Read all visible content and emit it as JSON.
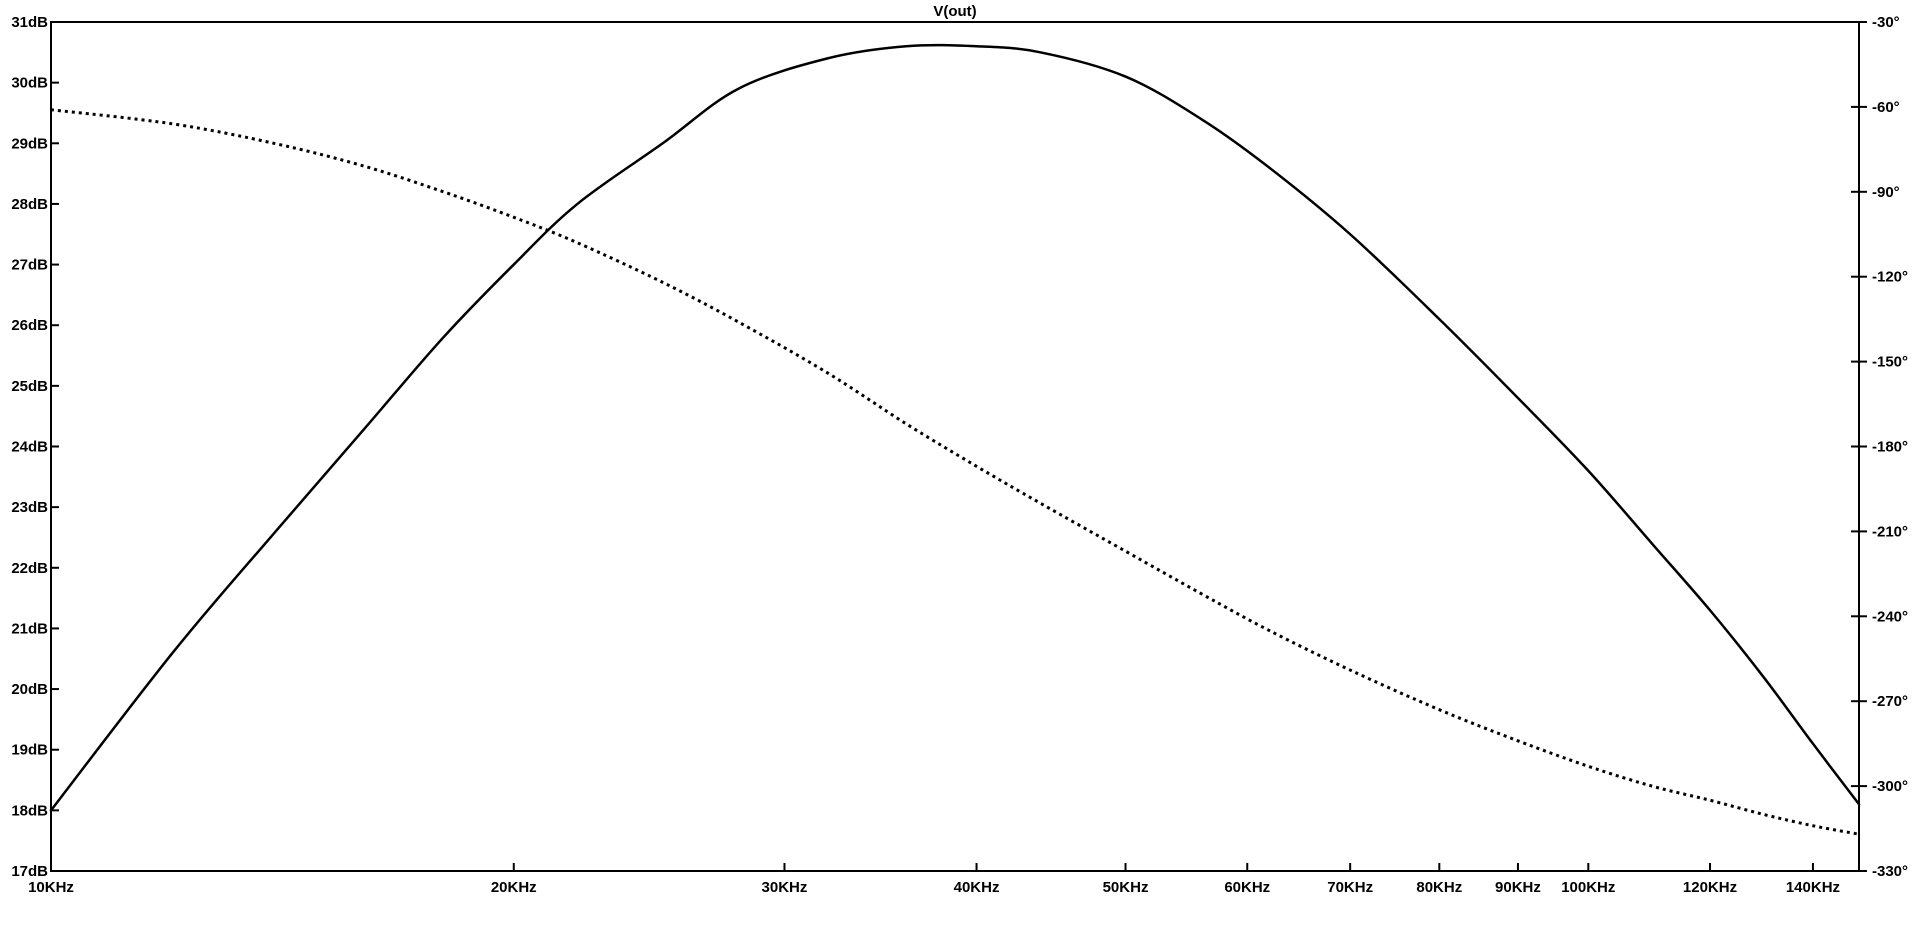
{
  "chart_data": {
    "type": "line",
    "title": "V(out)",
    "x_scale": "log",
    "xlim": [
      10000,
      150000
    ],
    "x_ticks": [
      10000,
      20000,
      30000,
      40000,
      50000,
      60000,
      70000,
      80000,
      90000,
      100000,
      120000,
      140000
    ],
    "x_tick_labels": [
      "10KHz",
      "20KHz",
      "30KHz",
      "40KHz",
      "50KHz",
      "60KHz",
      "70KHz",
      "80KHz",
      "90KHz",
      "100KHz",
      "120KHz",
      "140KHz"
    ],
    "ylim_left": [
      17,
      31
    ],
    "y_ticks_left": [
      17,
      18,
      19,
      20,
      21,
      22,
      23,
      24,
      25,
      26,
      27,
      28,
      29,
      30,
      31
    ],
    "y_tick_labels_left": [
      "17dB",
      "18dB",
      "19dB",
      "20dB",
      "21dB",
      "22dB",
      "23dB",
      "24dB",
      "25dB",
      "26dB",
      "27dB",
      "28dB",
      "29dB",
      "30dB",
      "31dB"
    ],
    "ylim_right": [
      -330,
      -30
    ],
    "y_ticks_right": [
      -330,
      -300,
      -270,
      -240,
      -210,
      -180,
      -150,
      -120,
      -90,
      -60,
      -30
    ],
    "y_tick_labels_right": [
      "-330°",
      "-300°",
      "-270°",
      "-240°",
      "-210°",
      "-180°",
      "-150°",
      "-120°",
      "-90°",
      "-60°",
      "-30°"
    ],
    "grid": false,
    "series": [
      {
        "axis": "left",
        "style": "solid",
        "color": "#000000",
        "x": [
          10000,
          12000,
          14000,
          16000,
          18000,
          20000,
          22000,
          25000,
          28000,
          32000,
          36000,
          40000,
          44000,
          50000,
          56000,
          62000,
          70000,
          80000,
          90000,
          100000,
          110000,
          120000,
          130000,
          140000,
          150000
        ],
        "y": [
          18.0,
          20.6,
          22.6,
          24.3,
          25.8,
          27.0,
          28.0,
          29.0,
          29.9,
          30.4,
          30.6,
          30.6,
          30.5,
          30.1,
          29.4,
          28.6,
          27.5,
          26.1,
          24.8,
          23.6,
          22.4,
          21.3,
          20.2,
          19.1,
          18.1
        ]
      },
      {
        "axis": "right",
        "style": "dotted",
        "color": "#000000",
        "x": [
          10000,
          12000,
          14000,
          16000,
          18000,
          20000,
          22000,
          25000,
          28000,
          32000,
          36000,
          40000,
          44000,
          50000,
          56000,
          62000,
          70000,
          80000,
          90000,
          100000,
          110000,
          120000,
          130000,
          140000,
          150000
        ],
        "y": [
          -61,
          -66,
          -73,
          -81,
          -90,
          -99,
          -108,
          -122,
          -136,
          -154,
          -172,
          -187,
          -200,
          -217,
          -232,
          -245,
          -259,
          -273,
          -284,
          -293,
          -300,
          -305,
          -310,
          -314,
          -317
        ]
      }
    ]
  }
}
